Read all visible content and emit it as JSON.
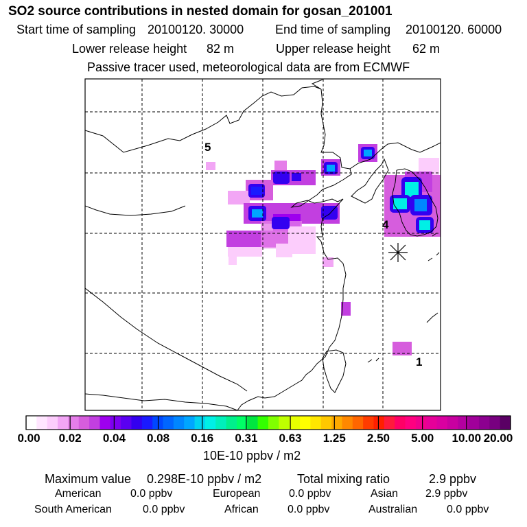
{
  "header": {
    "title": "SO2 source contributions in nested domain for gosan_201001",
    "start_label": "Start time of sampling",
    "start_value": "20100120. 30000",
    "end_label": "End time of sampling",
    "end_value": "20100120. 60000",
    "lower_label": "Lower release height",
    "lower_value": "82 m",
    "upper_label": "Upper release height",
    "upper_value": "62 m",
    "note": "Passive tracer used, meteorological data are from ECMWF"
  },
  "map": {
    "markers": [
      "5",
      "4",
      "1"
    ],
    "receptor_symbol": "✳"
  },
  "colorbar": {
    "ticks": [
      "0.00",
      "0.02",
      "0.04",
      "0.08",
      "0.16",
      "0.31",
      "0.63",
      "1.25",
      "2.50",
      "5.00",
      "10.00",
      "20.00"
    ],
    "colors": [
      "#ffffff",
      "#ffe6ff",
      "#fccdfc",
      "#f2a6f5",
      "#e57ee9",
      "#d65ddd",
      "#c23fe0",
      "#9e00ee",
      "#7c00f0",
      "#5a00f2",
      "#3300f0",
      "#1a1aff",
      "#0047ff",
      "#0066ff",
      "#0086ff",
      "#00a6ff",
      "#00d2f0",
      "#00f0e6",
      "#00f0bb",
      "#00f08c",
      "#00ff66",
      "#00e640",
      "#33ff00",
      "#80ff00",
      "#bfff00",
      "#e6ff00",
      "#ffff00",
      "#ffe600",
      "#ffc800",
      "#ffaa00",
      "#ff8800",
      "#ff6600",
      "#ff3c00",
      "#ff2000",
      "#ff1a3c",
      "#ff0066",
      "#ff0080",
      "#f0008c",
      "#e60099",
      "#d900a0",
      "#c800a0",
      "#b400a0",
      "#a0009a",
      "#8c0090",
      "#780080",
      "#5a0064"
    ],
    "unit": "10E-10 ppbv / m2"
  },
  "footer": {
    "max_label": "Maximum value",
    "max_value": "0.298E-10 ppbv / m2",
    "total_label": "Total mixing ratio",
    "total_value": "2.9 ppbv",
    "regions": [
      {
        "name": "American",
        "value": "0.0 ppbv"
      },
      {
        "name": "European",
        "value": "0.0 ppbv"
      },
      {
        "name": "Asian",
        "value": "2.9 ppbv"
      },
      {
        "name": "South American",
        "value": "0.0 ppbv"
      },
      {
        "name": "African",
        "value": "0.0 ppbv"
      },
      {
        "name": "Australian",
        "value": "0.0 ppbv"
      }
    ]
  }
}
